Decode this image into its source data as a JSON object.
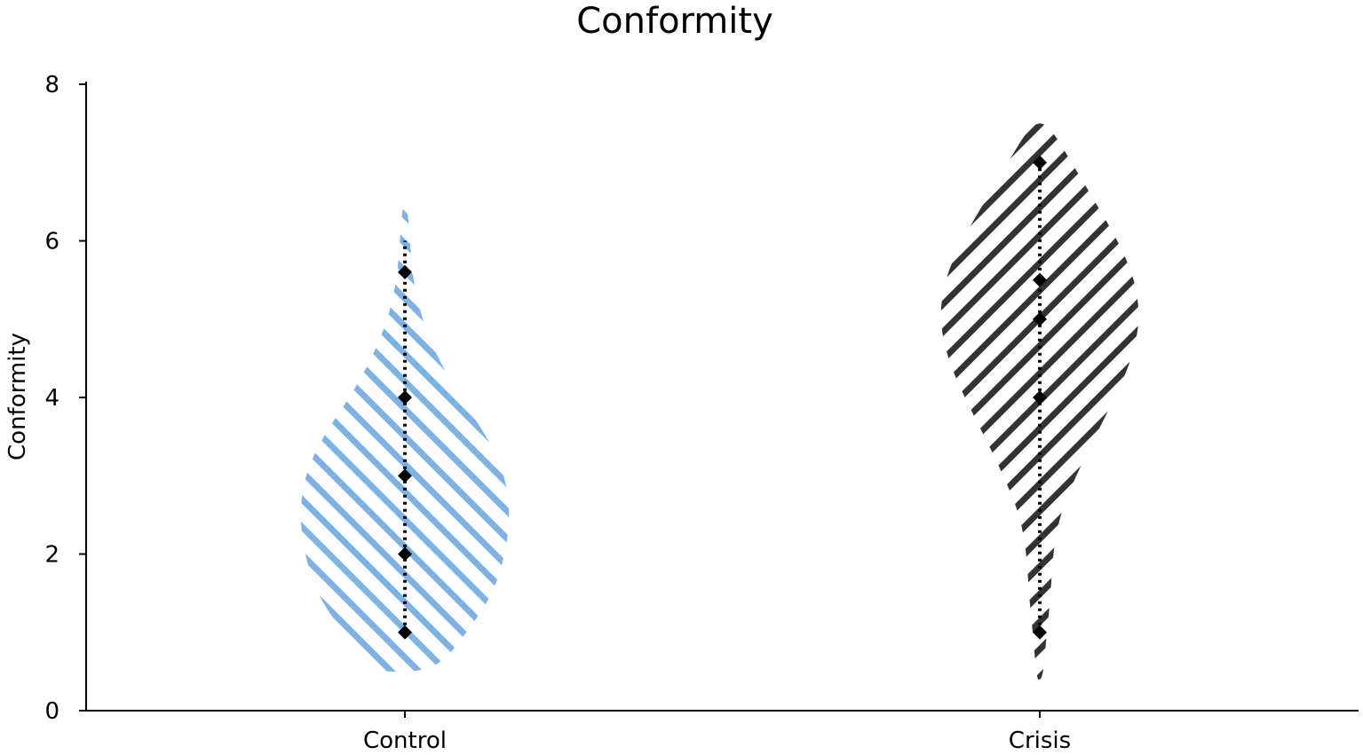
{
  "chart_data": {
    "type": "violin",
    "title": "Conformity",
    "xlabel": "",
    "ylabel": "Conformity",
    "ylim": [
      0,
      8
    ],
    "yticks": [
      0,
      2,
      4,
      6,
      8
    ],
    "categories": [
      "Control",
      "Crisis"
    ],
    "series": [
      {
        "category": "Control",
        "color": "#7fb1e3",
        "hatch": "diagonal-descending",
        "range": [
          1,
          6
        ],
        "points": [
          1,
          2,
          3,
          4,
          5.6
        ],
        "density": [
          [
            0.5,
            0.3
          ],
          [
            1.0,
            0.62
          ],
          [
            1.5,
            0.88
          ],
          [
            2.0,
            1.0
          ],
          [
            2.5,
            1.05
          ],
          [
            3.0,
            1.0
          ],
          [
            3.5,
            0.82
          ],
          [
            4.0,
            0.55
          ],
          [
            4.5,
            0.33
          ],
          [
            5.0,
            0.17
          ],
          [
            5.5,
            0.08
          ],
          [
            6.0,
            0.05
          ],
          [
            6.5,
            0.02
          ]
        ]
      },
      {
        "category": "Crisis",
        "color": "#333333",
        "hatch": "diagonal-ascending",
        "range": [
          1,
          7
        ],
        "points": [
          1,
          4,
          5,
          5.5,
          7
        ],
        "density": [
          [
            0.4,
            0.03
          ],
          [
            1.0,
            0.07
          ],
          [
            1.5,
            0.11
          ],
          [
            2.0,
            0.13
          ],
          [
            2.5,
            0.2
          ],
          [
            3.0,
            0.36
          ],
          [
            3.5,
            0.55
          ],
          [
            4.0,
            0.75
          ],
          [
            4.5,
            0.92
          ],
          [
            5.0,
            1.0
          ],
          [
            5.5,
            0.95
          ],
          [
            6.0,
            0.78
          ],
          [
            6.5,
            0.55
          ],
          [
            7.0,
            0.32
          ],
          [
            7.5,
            0.08
          ]
        ]
      }
    ]
  }
}
